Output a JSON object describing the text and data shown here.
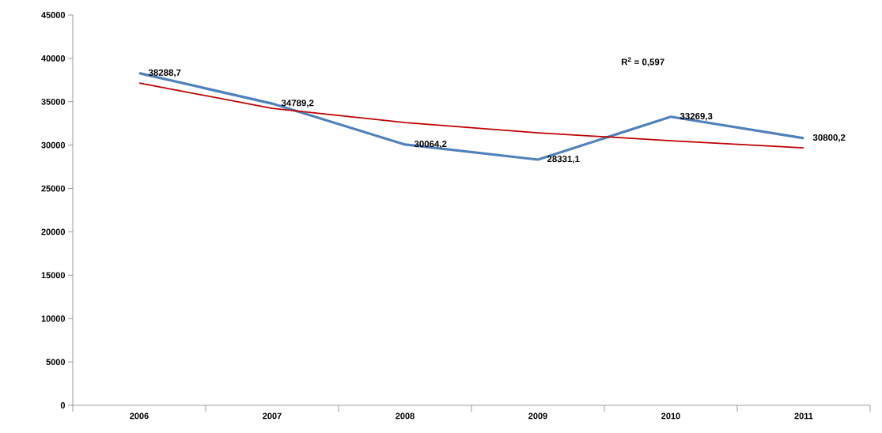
{
  "chart_data": {
    "type": "line",
    "categories": [
      "2006",
      "2007",
      "2008",
      "2009",
      "2010",
      "2011"
    ],
    "series": [
      {
        "color": "#4f81bd",
        "values": [
          38288.7,
          34789.2,
          30064.2,
          28331.1,
          33269.3,
          30800.2
        ],
        "value_labels": [
          "38288,7",
          "34789,2",
          "30064,2",
          "28331,1",
          "33269,3",
          "30800,2"
        ]
      },
      {
        "color": "#c00000",
        "values": [
          37160,
          34240,
          32600,
          31420,
          30510,
          29690
        ]
      }
    ],
    "annotations": [
      "R$^{2}$ = 0,597"
    ],
    "ylim": [
      0,
      45000
    ],
    "yticks": [
      0,
      5000,
      10000,
      15000,
      20000,
      25000,
      30000,
      35000,
      40000,
      45000
    ],
    "grid": false,
    "legend": false,
    "marker": "none"
  }
}
